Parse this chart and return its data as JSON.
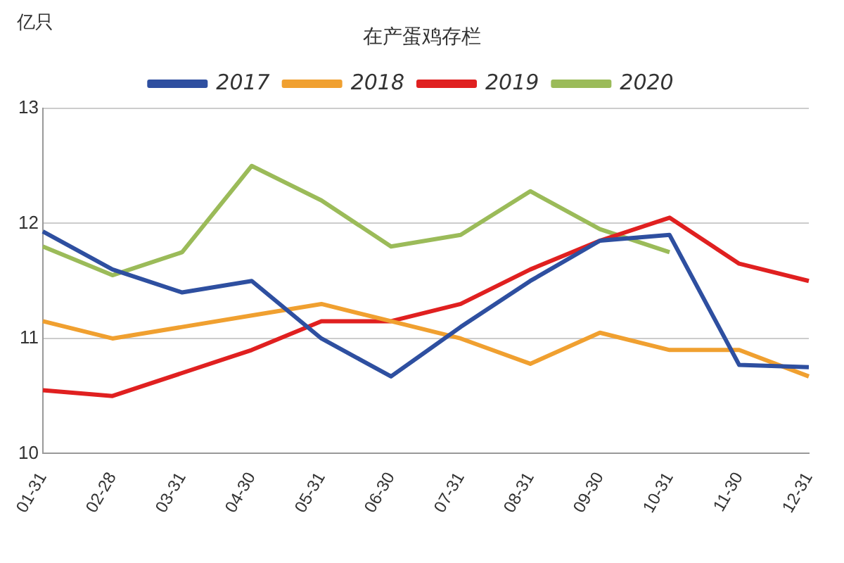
{
  "chart_data": {
    "type": "line",
    "title": "在产蛋鸡存栏",
    "ylabel": "亿只",
    "categories": [
      "01-31",
      "02-28",
      "03-31",
      "04-30",
      "05-31",
      "06-30",
      "07-31",
      "08-31",
      "09-30",
      "10-31",
      "11-30",
      "12-31"
    ],
    "series": [
      {
        "name": "2017",
        "color": "#2e4fa0",
        "values": [
          11.93,
          11.6,
          11.4,
          11.5,
          11.0,
          10.67,
          11.1,
          11.5,
          11.85,
          11.9,
          10.77,
          10.75
        ]
      },
      {
        "name": "2018",
        "color": "#f0a030",
        "values": [
          11.15,
          11.0,
          11.1,
          11.2,
          11.3,
          11.15,
          11.0,
          10.78,
          11.05,
          10.9,
          10.9,
          10.67
        ]
      },
      {
        "name": "2019",
        "color": "#e02020",
        "values": [
          10.55,
          10.5,
          10.7,
          10.9,
          11.15,
          11.15,
          11.3,
          11.6,
          11.85,
          12.05,
          11.65,
          11.5
        ]
      },
      {
        "name": "2020",
        "color": "#9bbb59",
        "values": [
          11.8,
          11.55,
          11.75,
          12.5,
          12.2,
          11.8,
          11.9,
          12.28,
          11.95,
          11.75,
          null,
          null
        ]
      }
    ],
    "ylim": [
      10,
      13
    ],
    "yticks": [
      10,
      11,
      12,
      13
    ],
    "grid": "y",
    "legend": "top",
    "marker": "none",
    "line_style": "solid"
  }
}
